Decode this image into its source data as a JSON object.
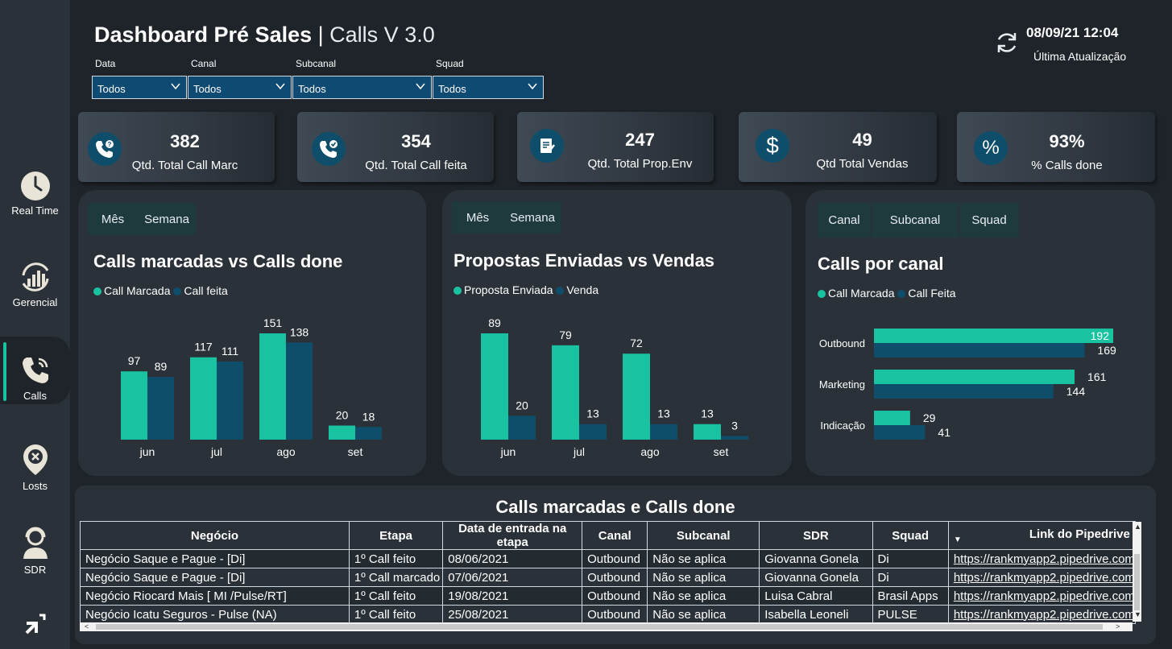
{
  "header": {
    "title_bold": "Dashboard Pré Sales",
    "title_sep": "|",
    "title_sub": "Calls V 3.0",
    "update_date": "08/09/21 12:04",
    "update_label": "Última Atualização"
  },
  "filters": [
    {
      "label": "Data",
      "value": "Todos"
    },
    {
      "label": "Canal",
      "value": "Todos"
    },
    {
      "label": "Subcanal",
      "value": "Todos"
    },
    {
      "label": "Squad",
      "value": "Todos"
    }
  ],
  "sidebar": {
    "items": [
      {
        "label": "Real Time",
        "icon": "clock-icon"
      },
      {
        "label": "Gerencial",
        "icon": "chart-growth-icon"
      },
      {
        "label": "Calls",
        "icon": "phone-icon"
      },
      {
        "label": "Losts",
        "icon": "location-x-icon"
      },
      {
        "label": "SDR",
        "icon": "agent-icon"
      },
      {
        "label": "",
        "icon": "logo-icon"
      }
    ]
  },
  "kpis": [
    {
      "value": "382",
      "label": "Qtd. Total Call Marc",
      "icon": "phone-question-icon"
    },
    {
      "value": "354",
      "label": "Qtd. Total Call feita",
      "icon": "phone-check-icon"
    },
    {
      "value": "247",
      "label": "Qtd. Total Prop.Env",
      "icon": "document-icon"
    },
    {
      "value": "49",
      "label": "Qtd Total Vendas",
      "icon": "dollar-icon"
    },
    {
      "value": "93%",
      "label": "% Calls done",
      "icon": "percent-icon"
    }
  ],
  "colors": {
    "series_a": "#19c3a2",
    "series_b": "#0e4e6b",
    "panel": "#2b3138",
    "background": "#1f242a"
  },
  "panels": {
    "calls": {
      "tabs": [
        "Mês",
        "Semana"
      ],
      "title": "Calls marcadas vs Calls done"
    },
    "proposals": {
      "tabs": [
        "Mês",
        "Semana"
      ],
      "title": "Propostas Enviadas vs Vendas"
    },
    "channel": {
      "tabs": [
        "Canal",
        "Subcanal",
        "Squad"
      ],
      "title": "Calls por canal"
    }
  },
  "chart_data": [
    {
      "type": "bar",
      "title": "Calls marcadas vs Calls done",
      "categories": [
        "jun",
        "jul",
        "ago",
        "set"
      ],
      "series": [
        {
          "name": "Call Marcada",
          "values": [
            97,
            117,
            151,
            20
          ]
        },
        {
          "name": "Call feita",
          "values": [
            89,
            111,
            138,
            18
          ]
        }
      ],
      "ylim": [
        0,
        151
      ],
      "legend": "top-left",
      "grid": false
    },
    {
      "type": "bar",
      "title": "Propostas Enviadas vs Vendas",
      "categories": [
        "jun",
        "jul",
        "ago",
        "set"
      ],
      "series": [
        {
          "name": "Proposta Enviada",
          "values": [
            89,
            79,
            72,
            13
          ]
        },
        {
          "name": "Venda",
          "values": [
            20,
            13,
            13,
            3
          ]
        }
      ],
      "ylim": [
        0,
        89
      ],
      "legend": "top-left",
      "grid": false
    },
    {
      "type": "bar",
      "orientation": "horizontal",
      "title": "Calls por canal",
      "categories": [
        "Outbound",
        "Marketing",
        "Indicação"
      ],
      "series": [
        {
          "name": "Call Marcada",
          "values": [
            192,
            161,
            29
          ]
        },
        {
          "name": "Call Feita",
          "values": [
            169,
            144,
            41
          ]
        }
      ],
      "xlim": [
        0,
        192
      ],
      "legend": "top-left",
      "grid": false
    }
  ],
  "table": {
    "title": "Calls marcadas e Calls done",
    "columns": [
      "Negócio",
      "Etapa",
      "Data de entrada na etapa",
      "Canal",
      "Subcanal",
      "SDR",
      "Squad",
      "Link do Pipedrive"
    ],
    "rows": [
      [
        "Negócio Saque e Pague - [Di]",
        "1º Call feito",
        "08/06/2021",
        "Outbound",
        "Não se aplica",
        "Giovanna Gonela",
        "Di",
        "https://rankmyapp2.pipedrive.com"
      ],
      [
        "Negócio Saque e Pague - [Di]",
        "1º Call marcado",
        "07/06/2021",
        "Outbound",
        "Não se aplica",
        "Giovanna Gonela",
        "Di",
        "https://rankmyapp2.pipedrive.com"
      ],
      [
        "Negócio Riocard Mais [ MI /Pulse/RT]",
        "1º Call feito",
        "19/08/2021",
        "Outbound",
        "Não se aplica",
        "Luisa Cabral",
        "Brasil Apps",
        "https://rankmyapp2.pipedrive.com"
      ],
      [
        "Negócio Icatu Seguros - Pulse (NA)",
        "1º Call feito",
        "25/08/2021",
        "Outbound",
        "Não se aplica",
        "Isabella Leoneli",
        "PULSE",
        "https://rankmyapp2.pipedrive.com"
      ]
    ]
  }
}
